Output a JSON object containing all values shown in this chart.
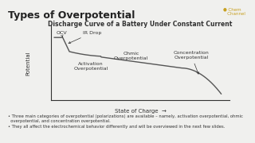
{
  "title": "Types of Overpotential",
  "title_color": "#222222",
  "title_underline_color": "#e8a020",
  "chart_title": "Discharge Curve of a Battery Under Constant Current",
  "bg_color": "#f0f0ee",
  "ylabel": "Potential",
  "xlabel": "State of Charge",
  "bullet_points": [
    "Three main categories of overpotential (polarizations) are available – namely, activation overpotential, ohmic\n  overpotential, and concentration overpotential.",
    "They all affect the electrochemical behavior differently and will be overviewed in the next few slides."
  ],
  "chem_channel_color": "#c8a020",
  "curve_color": "#555555",
  "line_color": "#333333"
}
